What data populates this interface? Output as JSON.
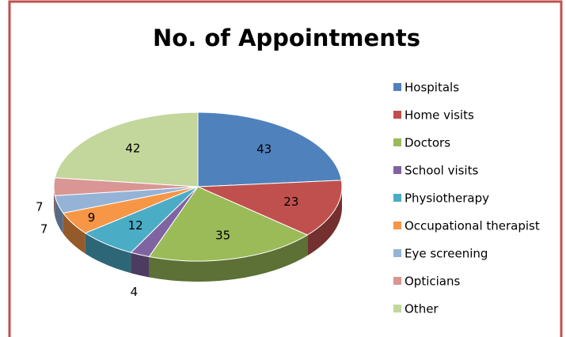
{
  "chart_data": {
    "type": "pie",
    "title": "No. of Appointments",
    "categories": [
      "Hospitals",
      "Home visits",
      "Doctors",
      "School visits",
      "Physiotherapy",
      "Occupational therapist",
      "Eye screening",
      "Opticians",
      "Other"
    ],
    "values": [
      43,
      23,
      35,
      4,
      12,
      9,
      7,
      7,
      42
    ],
    "colors": [
      "#4f81bd",
      "#c0504d",
      "#9bbb59",
      "#8064a2",
      "#4bacc6",
      "#f79646",
      "#95b3d7",
      "#d99694",
      "#c3d69b"
    ],
    "legend": "right"
  }
}
